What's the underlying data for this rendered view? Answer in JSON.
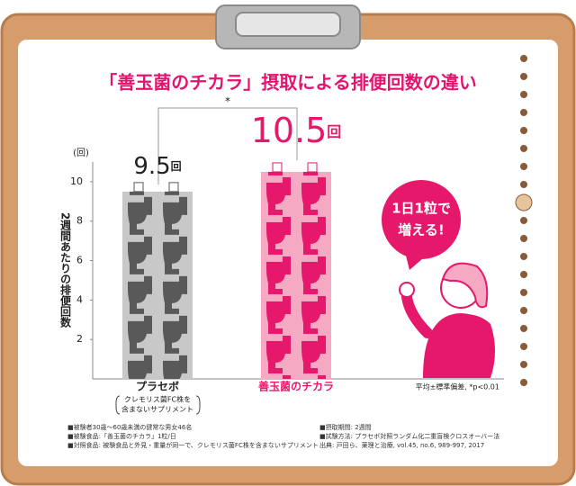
{
  "chart_data": {
    "type": "bar",
    "title": "「善玉菌のチカラ」摂取による排便回数の違い",
    "y_label": "2週間あたりの排便回数",
    "y_unit": "(回)",
    "value_unit": "回",
    "categories": [
      "プラセボ",
      "善玉菌のチカラ"
    ],
    "category_note": [
      "クレモリス菌FC株を",
      "含まないサプリメント"
    ],
    "values": [
      9.5,
      10.5
    ],
    "colors": [
      "#c8c8c8",
      "#f5a9c2"
    ],
    "icon_colors": [
      "#595959",
      "#e5186b"
    ],
    "label_colors": [
      "#222222",
      "#e5186b"
    ],
    "ylim": [
      0,
      11
    ],
    "yticks": [
      2,
      4,
      6,
      8,
      10
    ],
    "significance": "*",
    "stat_note": "平均±標準偏差, *p<0.01",
    "bubble": [
      "1日1粒で",
      "増える!"
    ],
    "footnotes_left": [
      "■被験者30歳〜60歳未満の健常な男女46名",
      "■被験食品:「善玉菌のチカラ」1粒/日",
      "■対照食品: 被験食品と外見・重量が同一で、クレモリス菌FC株を含まないサプリメント"
    ],
    "footnotes_right": [
      "■摂取期間: 2週間",
      "■試験方法: プラセボ対照ランダム化二重盲検クロスオーバー法",
      "出典: 戸田ら、薬理と治療, vol.45, no.6, 989-997, 2017"
    ]
  }
}
